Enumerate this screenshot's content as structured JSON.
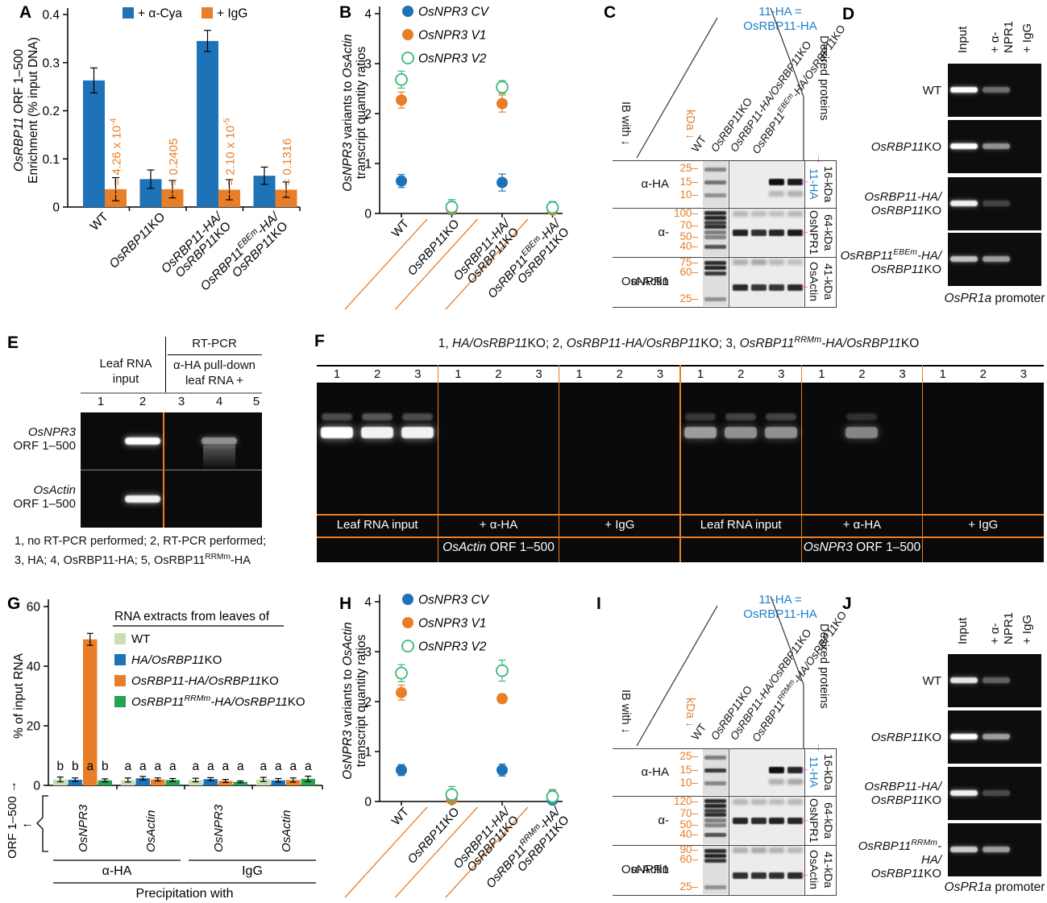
{
  "colors": {
    "blue": "#1e73b8",
    "orange": "#e87e27",
    "light_green": "#c9dfb2",
    "green": "#25a353",
    "open_green": "#3cb77e",
    "magenta": "#ee3fd0",
    "label_blue": "#1e7fc6"
  },
  "chart_data": [
    {
      "letter": "A",
      "type": "bar",
      "ylabel": [
        "*OsRBP11* ORF 1–500",
        "Enrichment (% input DNA)"
      ],
      "ylim": [
        0,
        0.4
      ],
      "yticks": [
        "0",
        "0.1",
        "0.2",
        "0.3",
        "0.4"
      ],
      "categories": [
        [
          "WT"
        ],
        [
          "*OsRBP11*KO"
        ],
        [
          "*OsRBP11-HA/*",
          "*OsRBP11*KO"
        ],
        [
          "*OsRBP11^EBEm^-HA/*",
          "*OsRBP11*KO"
        ]
      ],
      "series": [
        {
          "name": "+ α-Cya",
          "color": "#1e73b8",
          "values": [
            0.263,
            0.058,
            0.345,
            0.065
          ],
          "errors": [
            0.026,
            0.019,
            0.022,
            0.018
          ]
        },
        {
          "name": "+ IgG",
          "color": "#e87e27",
          "values": [
            0.037,
            0.037,
            0.036,
            0.036
          ],
          "errors": [
            0.024,
            0.018,
            0.021,
            0.016
          ]
        }
      ],
      "p_labels": [
        "*p* = 4.26 x 10^-4^",
        "*p* = 0.2405",
        "*p* = 2.10 x 10^-5^",
        "*p* = 0.1316"
      ]
    },
    {
      "letter": "B",
      "type": "scatter",
      "ylabel": [
        "*OsNPR3* variants to *OsActin*",
        "transcript quantity ratios"
      ],
      "ylim": [
        0,
        4
      ],
      "yticks": [
        "0",
        "1",
        "2",
        "3",
        "4"
      ],
      "categories": [
        [
          "WT"
        ],
        [
          "*OsRBP11*KO"
        ],
        [
          "*OsRBP11-HA/*",
          "*OsRBP11*KO"
        ],
        [
          "*OsRBP11^EBEm^-HA/*",
          "*OsRBP11*KO"
        ]
      ],
      "series": [
        {
          "name": "*OsNPR3 CV*",
          "color": "#1e73b8",
          "marker": "filled",
          "values": [
            0.65,
            0.14,
            0.62,
            0.08
          ],
          "errors": [
            0.13,
            0.1,
            0.17,
            0.08
          ]
        },
        {
          "name": "*OsNPR3 V1*",
          "color": "#e87e27",
          "marker": "filled",
          "values": [
            2.27,
            0.08,
            2.2,
            0.07
          ],
          "errors": [
            0.16,
            0.07,
            0.17,
            0.05
          ]
        },
        {
          "name": "*OsNPR3 V2*",
          "color": "#3cb77e",
          "marker": "open",
          "values": [
            2.68,
            0.13,
            2.53,
            0.12
          ],
          "errors": [
            0.17,
            0.15,
            0.13,
            0.12
          ]
        }
      ]
    },
    {
      "letter": "G",
      "type": "bar",
      "ylabel": [
        "% of input RNA"
      ],
      "ylim": [
        0,
        60
      ],
      "yticks": [
        "0",
        "20",
        "40",
        "60"
      ],
      "legend_title": "RNA extracts from leaves of",
      "series": [
        {
          "name": "WT",
          "color": "#c9dfb2",
          "values": [
            2.0,
            1.8,
            1.8,
            2.0
          ],
          "errors": [
            0.8,
            0.7,
            0.6,
            0.7
          ]
        },
        {
          "name": "*HA/OsRBP11*KO",
          "color": "#1e73b8",
          "values": [
            1.9,
            2.4,
            2.1,
            1.7
          ],
          "errors": [
            0.6,
            0.6,
            0.5,
            0.6
          ]
        },
        {
          "name": "*OsRBP11-HA/OsRBP11*KO",
          "color": "#e87e27",
          "values": [
            49,
            2.0,
            1.5,
            1.8
          ],
          "errors": [
            2.0,
            0.5,
            0.5,
            0.7
          ]
        },
        {
          "name": "*OsRBP11^RRMm^-HA/OsRBP11*KO",
          "color": "#25a353",
          "values": [
            1.7,
            1.8,
            1.2,
            2.2
          ],
          "errors": [
            0.5,
            0.5,
            0.3,
            0.9
          ]
        }
      ],
      "group_labels": [
        "*OsNPR3*",
        "*OsActin*",
        "*OsNPR3*",
        "*OsActin*"
      ],
      "sig_letters": [
        [
          "b",
          "b",
          "a",
          "b"
        ],
        [
          "a",
          "a",
          "a",
          "a"
        ],
        [
          "a",
          "a",
          "a",
          "a"
        ],
        [
          "a",
          "a",
          "a",
          "a"
        ]
      ],
      "bracket_groups": [
        {
          "label": "α-HA"
        },
        {
          "label": "IgG"
        }
      ],
      "bottom_label": "Precipitation with",
      "left_label": "ORF 1–500 →",
      "left_arrow": "←"
    },
    {
      "letter": "H",
      "type": "scatter",
      "ylabel": [
        "*OsNPR3* variants to *OsActin*",
        "transcript quantity ratios"
      ],
      "ylim": [
        0,
        4
      ],
      "yticks": [
        "0",
        "1",
        "2",
        "3",
        "4"
      ],
      "categories": [
        [
          "WT"
        ],
        [
          "*OsRBP11*KO"
        ],
        [
          "*OsRBP11-HA/*",
          "*OsRBP11*KO"
        ],
        [
          "*OsRBP11^RRMm^-HA/*",
          "*OsRBP11*KO"
        ]
      ],
      "series": [
        {
          "name": "*OsNPR3 CV*",
          "color": "#1e73b8",
          "marker": "filled",
          "values": [
            0.63,
            0.06,
            0.63,
            0.03
          ],
          "errors": [
            0.11,
            0.06,
            0.12,
            0.03
          ]
        },
        {
          "name": "*OsNPR3 V1*",
          "color": "#e87e27",
          "marker": "filled",
          "values": [
            2.18,
            0.04,
            2.06,
            0.12
          ],
          "errors": [
            0.15,
            0.04,
            0.09,
            0.1
          ]
        },
        {
          "name": "*OsNPR3 V2*",
          "color": "#3cb77e",
          "marker": "open",
          "values": [
            2.57,
            0.14,
            2.62,
            0.1
          ],
          "errors": [
            0.17,
            0.16,
            0.21,
            0.14
          ]
        }
      ]
    }
  ],
  "panels": {
    "c": {
      "letter": "C",
      "note": [
        "11-HA =",
        "OsRBP11-HA"
      ],
      "ib_with": "IB with ↓",
      "kda": "kDa ↓",
      "desired": "Desired proteins",
      "desired_arrow": "↓",
      "band_arrow": "←",
      "lanes": [
        "WT",
        "*OsRBP11*KO",
        "*OsRBP11-HA/OsRBP11*KO",
        "*OsRBP11^EBEm^-HA/OsRBP11*KO"
      ],
      "rows": [
        {
          "ab": "α-HA",
          "marks": [
            {
              "t": "25",
              "f": 0.18
            },
            {
              "t": "15",
              "f": 0.47
            },
            {
              "t": "10",
              "f": 0.75
            }
          ],
          "marker_bands": [
            {
              "f": 0.18,
              "i": 0.45
            },
            {
              "f": 0.47,
              "i": 0.55
            },
            {
              "f": 0.75,
              "i": 0.4
            }
          ],
          "band_f": 0.45,
          "bands": [
            0,
            0,
            1,
            0.95
          ],
          "smear_f": 0.72,
          "smear": [
            0,
            0,
            0.3,
            0.35
          ],
          "name": "11-HA",
          "name_blue": true,
          "size": "16-kDa"
        },
        {
          "ab": "α-OsNPR1",
          "marks": [
            {
              "t": "100",
              "f": 0.13
            },
            {
              "t": "70",
              "f": 0.38
            },
            {
              "t": "50",
              "f": 0.6
            },
            {
              "t": "40",
              "f": 0.8
            }
          ],
          "marker_bands": [
            {
              "f": 0.1,
              "i": 0.9
            },
            {
              "f": 0.2,
              "i": 0.95
            },
            {
              "f": 0.3,
              "i": 0.8
            },
            {
              "f": 0.38,
              "i": 0.9
            },
            {
              "f": 0.5,
              "i": 0.5
            },
            {
              "f": 0.6,
              "i": 0.45
            },
            {
              "f": 0.8,
              "i": 0.7
            }
          ],
          "band_f": 0.5,
          "bands": [
            0.92,
            0.85,
            0.9,
            0.95
          ],
          "smear_f": 0.12,
          "smear": [
            0.3,
            0.28,
            0.25,
            0.3
          ],
          "name": "OsNPR1",
          "name_blue": false,
          "size": "64-kDa"
        },
        {
          "ab": "α-Actin",
          "marks": [
            {
              "t": "75",
              "f": 0.13
            },
            {
              "t": "60",
              "f": 0.33
            },
            {
              "t": "25",
              "f": 0.85
            }
          ],
          "marker_bands": [
            {
              "f": 0.1,
              "i": 0.9
            },
            {
              "f": 0.2,
              "i": 0.95
            },
            {
              "f": 0.33,
              "i": 0.85
            },
            {
              "f": 0.85,
              "i": 0.4
            }
          ],
          "band_f": 0.62,
          "bands": [
            0.88,
            0.82,
            0.82,
            0.88
          ],
          "smear_f": 0.1,
          "smear": [
            0.35,
            0.4,
            0.3,
            0.25
          ],
          "name": "OsActin",
          "name_blue": false,
          "size": "41-kDa"
        }
      ]
    },
    "i": {
      "letter": "I",
      "note": [
        "11-HA =",
        "OsRBP11-HA"
      ],
      "ib_with": "IB with ↓",
      "kda": "kDa ↓",
      "desired": "Desired proteins",
      "desired_arrow": "↓",
      "band_arrow": "←",
      "lanes": [
        "WT",
        "*OsRBP11*KO",
        "*OsRBP11-HA/OsRBP11*KO",
        "*OsRBP11^RRMm^-HA/OsRBP11*KO"
      ],
      "rows": [
        {
          "ab": "α-HA",
          "marks": [
            {
              "t": "25",
              "f": 0.18
            },
            {
              "t": "15",
              "f": 0.47
            },
            {
              "t": "10",
              "f": 0.75
            }
          ],
          "marker_bands": [
            {
              "f": 0.18,
              "i": 0.5
            },
            {
              "f": 0.47,
              "i": 0.85
            },
            {
              "f": 0.75,
              "i": 0.45
            }
          ],
          "band_f": 0.45,
          "bands": [
            0,
            0,
            1,
            0.9
          ],
          "smear_f": 0.72,
          "smear": [
            0,
            0,
            0.35,
            0.4
          ],
          "name": "11-HA",
          "name_blue": true,
          "size": "16-kDa"
        },
        {
          "ab": "α-OsNPR1",
          "marks": [
            {
              "t": "120",
              "f": 0.13
            },
            {
              "t": "70",
              "f": 0.38
            },
            {
              "t": "50",
              "f": 0.6
            },
            {
              "t": "40",
              "f": 0.8
            }
          ],
          "marker_bands": [
            {
              "f": 0.1,
              "i": 0.9
            },
            {
              "f": 0.2,
              "i": 0.95
            },
            {
              "f": 0.3,
              "i": 0.8
            },
            {
              "f": 0.38,
              "i": 0.9
            },
            {
              "f": 0.5,
              "i": 0.5
            },
            {
              "f": 0.6,
              "i": 0.45
            },
            {
              "f": 0.8,
              "i": 0.7
            }
          ],
          "band_f": 0.5,
          "bands": [
            0.9,
            0.88,
            0.92,
            0.9
          ],
          "smear_f": 0.12,
          "smear": [
            0.3,
            0.3,
            0.28,
            0.3
          ],
          "name": "OsNPR1",
          "name_blue": false,
          "size": "64-kDa"
        },
        {
          "ab": "α-Actin",
          "marks": [
            {
              "t": "90",
              "f": 0.12
            },
            {
              "t": "60",
              "f": 0.3
            },
            {
              "t": "25",
              "f": 0.85
            }
          ],
          "marker_bands": [
            {
              "f": 0.1,
              "i": 0.9
            },
            {
              "f": 0.2,
              "i": 0.95
            },
            {
              "f": 0.3,
              "i": 0.85
            },
            {
              "f": 0.85,
              "i": 0.4
            }
          ],
          "band_f": 0.62,
          "bands": [
            0.85,
            0.85,
            0.85,
            0.88
          ],
          "smear_f": 0.1,
          "smear": [
            0.35,
            0.4,
            0.35,
            0.3
          ],
          "name": "OsActin",
          "name_blue": false,
          "size": "41-kDa"
        }
      ]
    },
    "d": {
      "letter": "D",
      "col_headers": [
        "Input",
        "+ α-NPR1",
        "+ IgG"
      ],
      "rows": [
        {
          "label": [
            "WT"
          ],
          "bands": [
            1,
            0.4,
            0
          ]
        },
        {
          "label": [
            "*OsRBP11*KO"
          ],
          "bands": [
            1,
            0.55,
            0
          ]
        },
        {
          "label": [
            "*OsRBP11-HA/*",
            "*OsRBP11*KO"
          ],
          "bands": [
            0.95,
            0.22,
            0
          ]
        },
        {
          "label": [
            "*OsRBP11^EBEm^-HA/*",
            "*OsRBP11*KO"
          ],
          "bands": [
            0.75,
            0.6,
            0
          ]
        }
      ],
      "caption": "*OsPR1a* promoter"
    },
    "j": {
      "letter": "J",
      "col_headers": [
        "Input",
        "+ α-NPR1",
        "+ IgG"
      ],
      "rows": [
        {
          "label": [
            "WT"
          ],
          "bands": [
            0.9,
            0.35,
            0
          ]
        },
        {
          "label": [
            "*OsRBP11*KO"
          ],
          "bands": [
            1,
            0.6,
            0
          ]
        },
        {
          "label": [
            "*OsRBP11-HA/*",
            "*OsRBP11*KO"
          ],
          "bands": [
            0.95,
            0.25,
            0
          ]
        },
        {
          "label": [
            "*OsRBP11^RRMm^-HA/*",
            "*OsRBP11*KO"
          ],
          "bands": [
            0.8,
            0.6,
            0
          ]
        }
      ],
      "caption": "*OsPR1a* promoter"
    },
    "e": {
      "letter": "E",
      "rtpcr": "RT-PCR",
      "col1": [
        "Leaf RNA",
        "input"
      ],
      "col2": [
        "α-HA pull-down",
        "leaf RNA +"
      ],
      "lane_numbers": [
        "1",
        "2",
        "3",
        "4",
        "5"
      ],
      "rows": [
        {
          "label": [
            "*OsNPR3*",
            "ORF 1–500"
          ],
          "bands": [
            0,
            1,
            0,
            0.55,
            0
          ],
          "smear_lane": 3
        },
        {
          "label": [
            "*OsActin*",
            "ORF 1–500"
          ],
          "bands": [
            0,
            0.95,
            0,
            0,
            0
          ],
          "smear_lane": -1
        }
      ],
      "caption": [
        "1, no RT-PCR performed; 2, RT-PCR performed;",
        "3, HA; 4, OsRBP11-HA; 5, OsRBP11^RRMm^-HA"
      ]
    },
    "f": {
      "letter": "F",
      "title": "1, *HA/OsRBP11*KO; 2, *OsRBP11-HA/OsRBP11*KO; 3, *OsRBP11^RRMm^-HA/OsRBP11*KO",
      "lane_numbers": [
        "1",
        "2",
        "3"
      ],
      "groups": [
        {
          "label": "Leaf RNA input",
          "bands": [
            1,
            0.95,
            0.95
          ],
          "upper": [
            0.35,
            0.4,
            0.35
          ]
        },
        {
          "label": "+ α-HA",
          "bands": [
            0,
            0,
            0
          ],
          "upper": [
            0,
            0,
            0
          ]
        },
        {
          "label": "+ IgG",
          "bands": [
            0,
            0,
            0
          ],
          "upper": [
            0,
            0,
            0
          ]
        },
        {
          "label": "Leaf RNA input",
          "bands": [
            0.6,
            0.55,
            0.55
          ],
          "upper": [
            0.25,
            0.3,
            0.3
          ]
        },
        {
          "label": "+ α-HA",
          "bands": [
            0,
            0.5,
            0
          ],
          "upper": [
            0,
            0.2,
            0
          ]
        },
        {
          "label": "+ IgG",
          "bands": [
            0,
            0,
            0
          ],
          "upper": [
            0,
            0,
            0
          ]
        }
      ],
      "bottom_labels": [
        "*OsActin* ORF 1–500",
        "*OsNPR3* ORF 1–500"
      ]
    }
  }
}
